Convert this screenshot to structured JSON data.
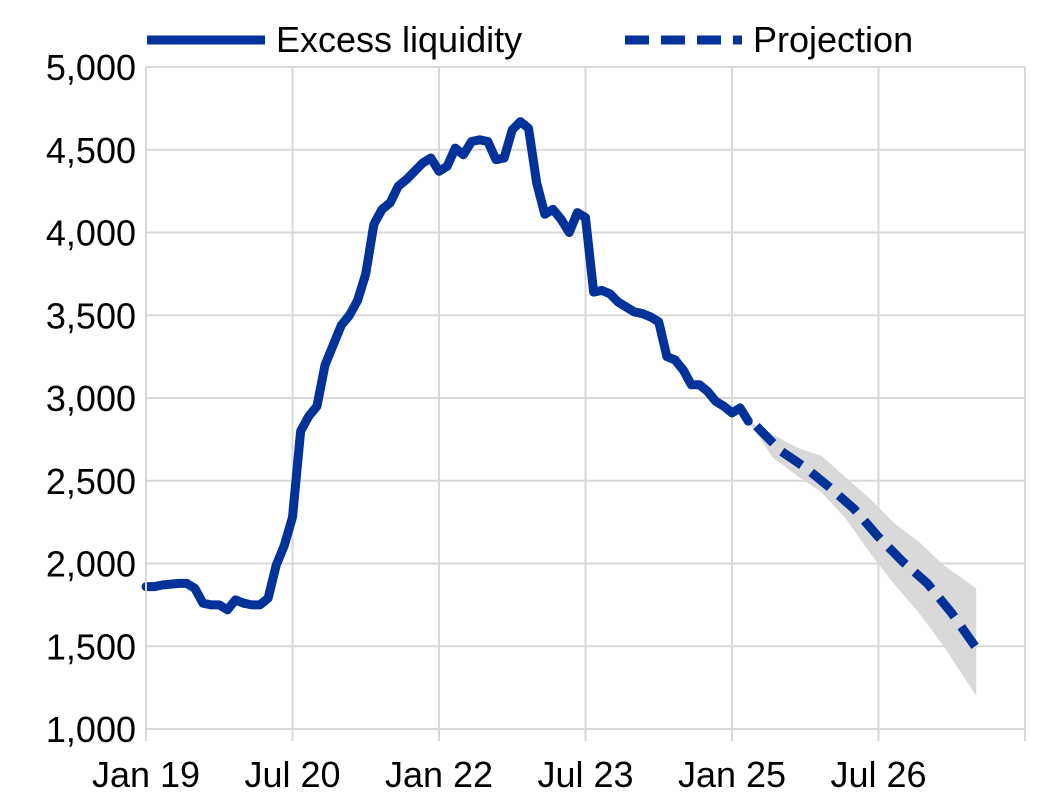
{
  "chart_data": {
    "type": "line",
    "title": "",
    "xlabel": "",
    "ylabel": "",
    "ylim": [
      1000,
      5000
    ],
    "yticks": [
      "1,000",
      "1,500",
      "2,000",
      "2,500",
      "3,000",
      "3,500",
      "4,000",
      "4,500",
      "5,000"
    ],
    "yticks_values": [
      1000,
      1500,
      2000,
      2500,
      3000,
      3500,
      4000,
      4500,
      5000
    ],
    "xlim": [
      "2019-01",
      "2027-07"
    ],
    "xticks": [
      {
        "date": "2019-01",
        "label": "Jan 19"
      },
      {
        "date": "2020-07",
        "label": "Jul 20"
      },
      {
        "date": "2022-01",
        "label": "Jan 22"
      },
      {
        "date": "2023-07",
        "label": "Jul 23"
      },
      {
        "date": "2025-01",
        "label": "Jan 25"
      },
      {
        "date": "2026-07",
        "label": "Jul 26"
      },
      {
        "date": "2028-01",
        "label": ""
      }
    ],
    "grid": true,
    "legend_position": "top",
    "series": [
      {
        "name": "Excess liquidity",
        "color": "#003299",
        "style": "solid",
        "points": [
          [
            "2019-01",
            1860
          ],
          [
            "2019-02",
            1860
          ],
          [
            "2019-03",
            1870
          ],
          [
            "2019-05",
            1880
          ],
          [
            "2019-06",
            1880
          ],
          [
            "2019-07",
            1850
          ],
          [
            "2019-08",
            1760
          ],
          [
            "2019-09",
            1750
          ],
          [
            "2019-10",
            1750
          ],
          [
            "2019-11",
            1720
          ],
          [
            "2019-12",
            1780
          ],
          [
            "2020-01",
            1760
          ],
          [
            "2020-02",
            1750
          ],
          [
            "2020-03",
            1750
          ],
          [
            "2020-04",
            1790
          ],
          [
            "2020-05",
            1990
          ],
          [
            "2020-06",
            2110
          ],
          [
            "2020-07",
            2280
          ],
          [
            "2020-08",
            2800
          ],
          [
            "2020-09",
            2890
          ],
          [
            "2020-10",
            2950
          ],
          [
            "2020-11",
            3200
          ],
          [
            "2020-12",
            3320
          ],
          [
            "2021-01",
            3440
          ],
          [
            "2021-02",
            3500
          ],
          [
            "2021-03",
            3590
          ],
          [
            "2021-04",
            3750
          ],
          [
            "2021-05",
            4050
          ],
          [
            "2021-06",
            4140
          ],
          [
            "2021-07",
            4180
          ],
          [
            "2021-08",
            4280
          ],
          [
            "2021-09",
            4320
          ],
          [
            "2021-10",
            4370
          ],
          [
            "2021-11",
            4420
          ],
          [
            "2021-12",
            4450
          ],
          [
            "2022-01",
            4370
          ],
          [
            "2022-02",
            4400
          ],
          [
            "2022-03",
            4510
          ],
          [
            "2022-04",
            4470
          ],
          [
            "2022-05",
            4550
          ],
          [
            "2022-06",
            4560
          ],
          [
            "2022-07",
            4550
          ],
          [
            "2022-08",
            4440
          ],
          [
            "2022-09",
            4450
          ],
          [
            "2022-10",
            4620
          ],
          [
            "2022-11",
            4670
          ],
          [
            "2022-12",
            4630
          ],
          [
            "2023-01",
            4300
          ],
          [
            "2023-02",
            4110
          ],
          [
            "2023-03",
            4140
          ],
          [
            "2023-04",
            4080
          ],
          [
            "2023-05",
            4000
          ],
          [
            "2023-06",
            4120
          ],
          [
            "2023-07",
            4090
          ],
          [
            "2023-08",
            3640
          ],
          [
            "2023-09",
            3650
          ],
          [
            "2023-10",
            3630
          ],
          [
            "2023-11",
            3580
          ],
          [
            "2023-12",
            3550
          ],
          [
            "2024-01",
            3520
          ],
          [
            "2024-02",
            3510
          ],
          [
            "2024-03",
            3490
          ],
          [
            "2024-04",
            3460
          ],
          [
            "2024-05",
            3250
          ],
          [
            "2024-06",
            3230
          ],
          [
            "2024-07",
            3170
          ],
          [
            "2024-08",
            3080
          ],
          [
            "2024-09",
            3080
          ],
          [
            "2024-10",
            3040
          ],
          [
            "2024-11",
            2980
          ],
          [
            "2024-12",
            2950
          ],
          [
            "2025-01",
            2910
          ],
          [
            "2025-02",
            2940
          ],
          [
            "2025-03",
            2860
          ]
        ]
      },
      {
        "name": "Projection",
        "color": "#003299",
        "style": "dashed",
        "points": [
          [
            "2025-04",
            2830
          ],
          [
            "2025-07",
            2680
          ],
          [
            "2025-10",
            2580
          ],
          [
            "2026-01",
            2460
          ],
          [
            "2026-04",
            2330
          ],
          [
            "2026-07",
            2160
          ],
          [
            "2026-10",
            2010
          ],
          [
            "2027-01",
            1880
          ],
          [
            "2027-04",
            1700
          ],
          [
            "2027-07",
            1490
          ]
        ]
      }
    ],
    "band": {
      "color": "#d9d9d9",
      "points": [
        [
          "2025-03",
          2860,
          2860
        ],
        [
          "2025-06",
          2780,
          2640
        ],
        [
          "2025-09",
          2700,
          2530
        ],
        [
          "2025-12",
          2650,
          2430
        ],
        [
          "2026-03",
          2520,
          2270
        ],
        [
          "2026-06",
          2390,
          2060
        ],
        [
          "2026-09",
          2240,
          1870
        ],
        [
          "2026-12",
          2130,
          1700
        ],
        [
          "2027-03",
          1990,
          1500
        ],
        [
          "2027-07",
          1850,
          1200
        ]
      ]
    }
  }
}
